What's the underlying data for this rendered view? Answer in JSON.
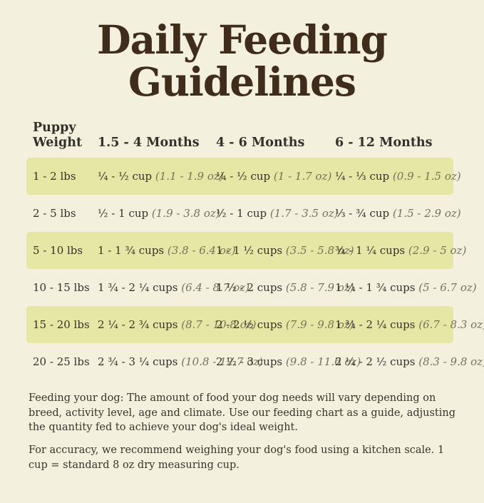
{
  "title": {
    "line1": "Daily Feeding",
    "line2": "Guidelines"
  },
  "chart_data": {
    "type": "table",
    "title": "Daily Feeding Guidelines",
    "columns": [
      "Puppy Weight",
      "1.5 - 4 Months",
      "4 - 6 Months",
      "6 - 12 Months"
    ],
    "rows": [
      {
        "weight": "1 - 2 lbs",
        "highlight": true,
        "cells": [
          {
            "cups": "¼ - ½ cup",
            "oz": "(1.1 - 1.9 oz)"
          },
          {
            "cups": "¼ - ½ cup",
            "oz": "(1 - 1.7 oz)"
          },
          {
            "cups": "¼ - ⅓ cup",
            "oz": "(0.9 - 1.5 oz)"
          }
        ]
      },
      {
        "weight": "2 -  5 lbs",
        "highlight": false,
        "cells": [
          {
            "cups": "½ - 1 cup",
            "oz": "(1.9 - 3.8 oz)"
          },
          {
            "cups": "½ - 1 cup",
            "oz": "(1.7 - 3.5 oz)"
          },
          {
            "cups": "⅓ - ¾ cup",
            "oz": "(1.5 - 2.9 oz)"
          }
        ]
      },
      {
        "weight": "5 - 10 lbs",
        "highlight": true,
        "cells": [
          {
            "cups": "1 - 1 ¾ cups",
            "oz": "(3.8 - 6.4 oz)"
          },
          {
            "cups": "1 - 1 ½ cups",
            "oz": "(3.5 - 5.8 oz)"
          },
          {
            "cups": "¾ - 1 ¼ cups",
            "oz": "(2.9 - 5 oz)"
          }
        ]
      },
      {
        "weight": "10 - 15 lbs",
        "highlight": false,
        "cells": [
          {
            "cups": "1 ¾ - 2 ¼ cups",
            "oz": "(6.4 - 8.7 oz)"
          },
          {
            "cups": "1 ½ - 2 cups",
            "oz": "(5.8 - 7.9 oz)"
          },
          {
            "cups": "1 ¼ - 1 ¾ cups",
            "oz": "(5 - 6.7 oz)"
          }
        ]
      },
      {
        "weight": "15 - 20 lbs",
        "highlight": true,
        "cells": [
          {
            "cups": "2 ¼ - 2 ¾ cups",
            "oz": "(8.7 - 10.8 oz)"
          },
          {
            "cups": "2 - 2 ½ cups",
            "oz": "(7.9 - 9.8 oz)"
          },
          {
            "cups": "1 ¾ - 2 ¼ cups",
            "oz": "(6.7 - 8.3 oz)"
          }
        ]
      },
      {
        "weight": "20 - 25 lbs",
        "highlight": false,
        "cells": [
          {
            "cups": "2 ¾ - 3 ¼ cups",
            "oz": "(10.8 - 12.7 oz)"
          },
          {
            "cups": "2 ½ - 3 cups",
            "oz": "(9.8 - 11.6 oz)"
          },
          {
            "cups": "2 ¼ - 2 ½ cups",
            "oz": "(8.3 - 9.8 oz)"
          }
        ]
      }
    ]
  },
  "notes": [
    "Feeding your dog: The amount of food your dog needs will vary depending on breed, activity level, age and climate. Use our feeding chart as a guide, adjusting the quantity fed to achieve your dog's ideal weight.",
    "For accuracy, we recommend weighing your dog's food using a kitchen scale. 1 cup = standard 8 oz dry measuring cup."
  ],
  "colors": {
    "background": "#f4f0de",
    "row_highlight": "#e5e8a4",
    "title_text": "#3f2c1a",
    "body_text": "#33312b",
    "oz_text": "#74725a"
  }
}
